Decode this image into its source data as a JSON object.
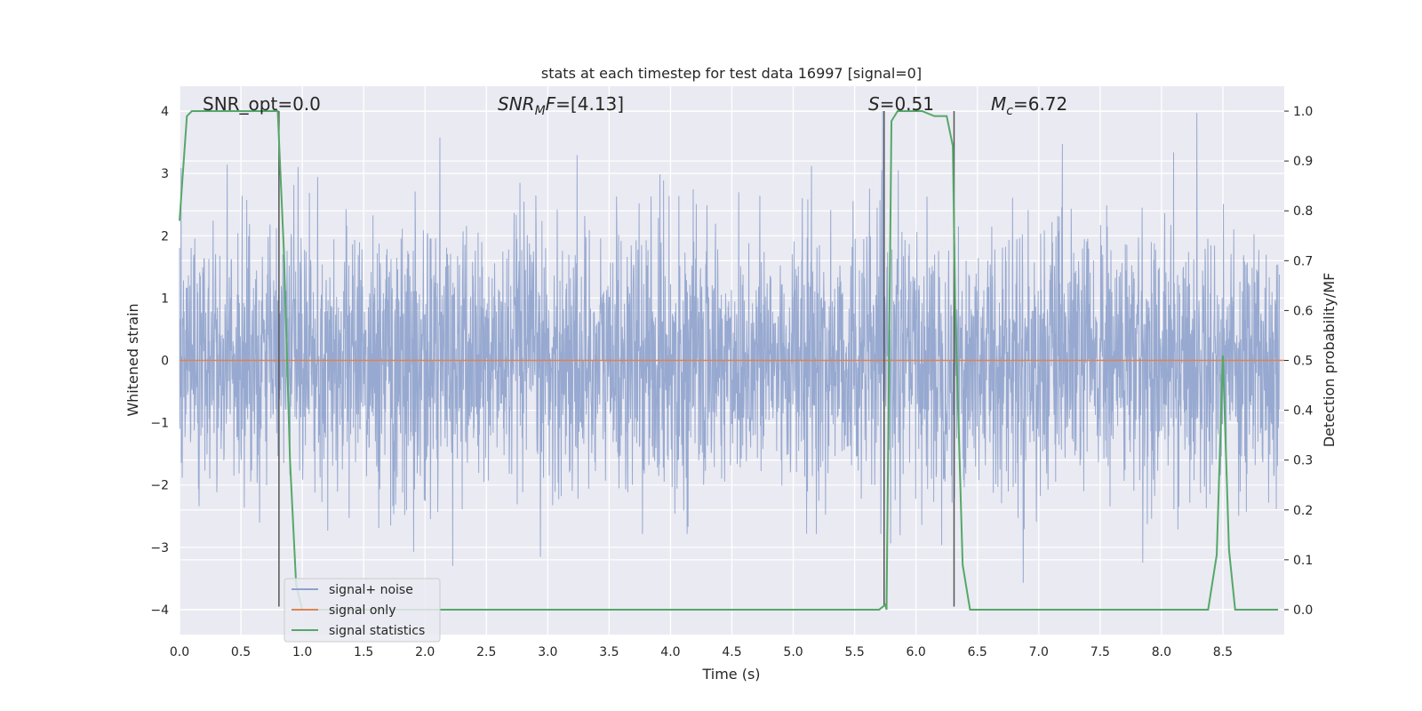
{
  "chart_data": {
    "type": "line",
    "title": "stats at each timestep for test data 16997 [signal=0]",
    "xlabel": "Time (s)",
    "ylabel_left": "Whitened strain",
    "ylabel_right": "Detection probability/MF",
    "xlim": [
      0.0,
      9.0
    ],
    "ylim_left": [
      -4.4,
      4.4
    ],
    "ylim_right": [
      -0.05,
      1.05
    ],
    "x_ticks": [
      "0.0",
      "0.5",
      "1.0",
      "1.5",
      "2.0",
      "2.5",
      "3.0",
      "3.5",
      "4.0",
      "4.5",
      "5.0",
      "5.5",
      "6.0",
      "6.5",
      "7.0",
      "7.5",
      "8.0",
      "8.5"
    ],
    "x_tick_values": [
      0.0,
      0.5,
      1.0,
      1.5,
      2.0,
      2.5,
      3.0,
      3.5,
      4.0,
      4.5,
      5.0,
      5.5,
      6.0,
      6.5,
      7.0,
      7.5,
      8.0,
      8.5
    ],
    "y_left_ticks": [
      "−4",
      "−3",
      "−2",
      "−1",
      "0",
      "1",
      "2",
      "3",
      "4"
    ],
    "y_left_tick_values": [
      -4,
      -3,
      -2,
      -1,
      0,
      1,
      2,
      3,
      4
    ],
    "y_right_ticks": [
      "0.0",
      "0.1",
      "0.2",
      "0.3",
      "0.4",
      "0.5",
      "0.6",
      "0.7",
      "0.8",
      "0.9",
      "1.0"
    ],
    "y_right_tick_values": [
      0.0,
      0.1,
      0.2,
      0.3,
      0.4,
      0.5,
      0.6,
      0.7,
      0.8,
      0.9,
      1.0
    ],
    "grid": true,
    "legend_position": "lower-left",
    "series": [
      {
        "name": "signal+ noise",
        "axis": "left",
        "color": "#8ea2cc",
        "description_values": "white Gaussian noise, approx. range -4 to 4"
      },
      {
        "name": "signal only",
        "axis": "left",
        "color": "#dd8452",
        "x": [
          0.0,
          9.0
        ],
        "y": [
          0.0,
          0.0
        ]
      },
      {
        "name": "signal statistics",
        "axis": "right",
        "color": "#55a868",
        "x": [
          0.0,
          0.06,
          0.1,
          0.3,
          0.5,
          0.75,
          0.8,
          0.85,
          0.9,
          0.95,
          1.0,
          5.5,
          5.7,
          5.75,
          5.76,
          5.8,
          5.85,
          5.95,
          6.05,
          6.15,
          6.25,
          6.3,
          6.32,
          6.38,
          6.44,
          8.38,
          8.45,
          8.5,
          8.55,
          8.6,
          8.95
        ],
        "y": [
          0.78,
          0.99,
          1.0,
          1.0,
          1.0,
          1.0,
          1.0,
          0.72,
          0.3,
          0.05,
          0.0,
          0.0,
          0.0,
          0.01,
          0.0,
          0.98,
          1.0,
          1.0,
          1.0,
          0.99,
          0.99,
          0.93,
          0.6,
          0.09,
          0.0,
          0.0,
          0.11,
          0.51,
          0.12,
          0.0,
          0.0
        ]
      }
    ],
    "vertical_markers": [
      {
        "x": 0.81,
        "y_from": -3.95,
        "y_to": 4.0
      },
      {
        "x": 5.74,
        "y_from": -3.95,
        "y_to": 4.0
      },
      {
        "x": 6.31,
        "y_from": -3.95,
        "y_to": 4.0
      }
    ],
    "annotations": {
      "snr_opt": "SNR_opt=0.0",
      "snr_mf_sym": "SNR",
      "snr_mf_sub": "M",
      "snr_mf_tail": "F",
      "snr_mf_value": "=[4.13]",
      "s_sym": "S",
      "s_value": "=0.51",
      "mc_sym": "M",
      "mc_sub": "c",
      "mc_value": "=6.72"
    }
  },
  "colors": {
    "plot_background": "#eaeaf2",
    "grid": "#ffffff",
    "marker_lines": "#555555"
  }
}
